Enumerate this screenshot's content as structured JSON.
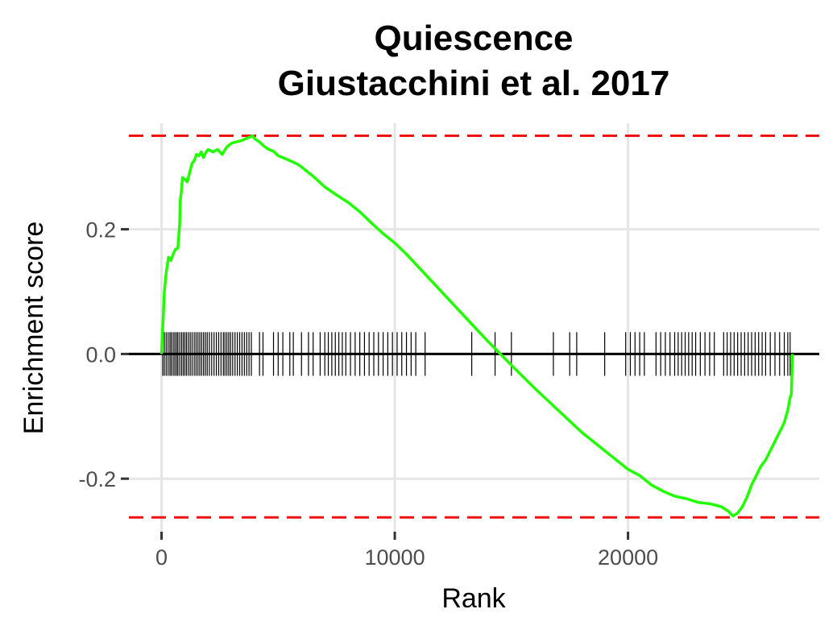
{
  "chart_data": {
    "type": "line",
    "title": "Quiescence",
    "subtitle": "Giustacchini et al. 2017",
    "xlabel": "Rank",
    "ylabel": "Enrichment score",
    "xlim": [
      -1400,
      28200
    ],
    "ylim": [
      -0.285,
      0.37
    ],
    "x_ticks": [
      0,
      10000,
      20000
    ],
    "x_tick_labels": [
      "0",
      "10000",
      "20000"
    ],
    "y_ticks": [
      -0.2,
      0.0,
      0.2
    ],
    "y_tick_labels": [
      "-0.2",
      "0.0",
      "0.2"
    ],
    "grid": true,
    "legend": "none",
    "colors": {
      "curve": "#22ff00",
      "threshold": "#ee1111",
      "zero_line": "#000000",
      "ticks": "#000000",
      "grid": "#e6e6e6"
    },
    "max_es": 0.35,
    "min_es": -0.262,
    "series": [
      {
        "x": [
          0,
          60,
          120,
          200,
          300,
          400,
          500,
          600,
          700,
          780,
          800,
          850,
          900,
          1000,
          1100,
          1200,
          1300,
          1400,
          1500,
          1600,
          1700,
          1800,
          1900,
          2000,
          2200,
          2400,
          2600,
          2800,
          3000,
          3200,
          3400,
          3600,
          3800,
          3900,
          4000,
          4200,
          4400,
          4600,
          4800,
          5000,
          5200,
          5500,
          5800,
          6000,
          6500,
          7000,
          7500,
          8000,
          8500,
          9000,
          9500,
          10000,
          10500,
          11000,
          12000,
          13000,
          14000,
          15000,
          16000,
          17000,
          18000,
          19000,
          20000,
          20500,
          21000,
          21500,
          22000,
          22500,
          23000,
          23500,
          24000,
          24300,
          24500,
          24700,
          24900,
          25100,
          25300,
          25500,
          25700,
          25900,
          26100,
          26300,
          26500,
          26700,
          26850,
          26950,
          27000,
          27050
        ],
        "y": [
          0.0,
          0.05,
          0.1,
          0.13,
          0.155,
          0.15,
          0.16,
          0.168,
          0.17,
          0.21,
          0.245,
          0.26,
          0.283,
          0.28,
          0.276,
          0.29,
          0.305,
          0.31,
          0.32,
          0.318,
          0.324,
          0.315,
          0.323,
          0.328,
          0.324,
          0.328,
          0.32,
          0.332,
          0.338,
          0.34,
          0.342,
          0.345,
          0.348,
          0.35,
          0.345,
          0.34,
          0.333,
          0.328,
          0.325,
          0.318,
          0.315,
          0.31,
          0.305,
          0.3,
          0.285,
          0.268,
          0.255,
          0.243,
          0.228,
          0.21,
          0.193,
          0.178,
          0.16,
          0.14,
          0.1,
          0.06,
          0.02,
          -0.018,
          -0.055,
          -0.09,
          -0.125,
          -0.155,
          -0.185,
          -0.195,
          -0.21,
          -0.22,
          -0.228,
          -0.232,
          -0.238,
          -0.24,
          -0.245,
          -0.252,
          -0.26,
          -0.255,
          -0.245,
          -0.23,
          -0.21,
          -0.195,
          -0.18,
          -0.17,
          -0.155,
          -0.14,
          -0.125,
          -0.11,
          -0.09,
          -0.07,
          -0.065,
          0.0
        ]
      }
    ],
    "hits": [
      50,
      120,
      200,
      280,
      360,
      420,
      500,
      570,
      640,
      700,
      780,
      860,
      930,
      1000,
      1070,
      1150,
      1230,
      1310,
      1400,
      1480,
      1560,
      1640,
      1720,
      1800,
      1880,
      1960,
      2050,
      2150,
      2250,
      2350,
      2450,
      2550,
      2650,
      2720,
      2800,
      2880,
      2960,
      3050,
      3150,
      3250,
      3350,
      3450,
      3550,
      3650,
      3750,
      3850,
      4200,
      4350,
      4800,
      5000,
      5200,
      5500,
      5650,
      6000,
      6300,
      6500,
      6800,
      7000,
      7150,
      7300,
      7450,
      7600,
      7750,
      7900,
      8100,
      8300,
      8500,
      8700,
      8900,
      9100,
      9300,
      9500,
      9700,
      9900,
      10100,
      10300,
      10500,
      10700,
      10900,
      11300,
      13300,
      14300,
      15000,
      16800,
      17500,
      17800,
      19000,
      19900,
      20100,
      20300,
      20500,
      20700,
      21200,
      21400,
      21600,
      21800,
      22000,
      22150,
      22300,
      22450,
      22600,
      22750,
      22900,
      23100,
      23300,
      23500,
      23700,
      24100,
      24250,
      24400,
      24550,
      24700,
      24850,
      25000,
      25150,
      25300,
      25450,
      25600,
      25750,
      25900,
      26100,
      26300,
      26500,
      26700,
      26850,
      26950
    ]
  }
}
